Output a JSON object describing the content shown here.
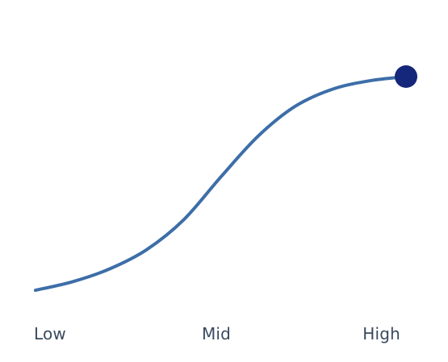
{
  "chart_data": {
    "type": "line",
    "categories": [
      "Low",
      "Mid",
      "High"
    ],
    "series": [
      {
        "x": [
          0,
          0.1,
          0.2,
          0.3,
          0.4,
          0.5,
          0.6,
          0.7,
          0.8,
          0.9,
          1.0
        ],
        "values": [
          0,
          0.04,
          0.1,
          0.19,
          0.33,
          0.53,
          0.72,
          0.86,
          0.94,
          0.98,
          1.0
        ],
        "color": "#3d6ea8"
      }
    ],
    "xlim": [
      0,
      1
    ],
    "ylim": [
      0,
      1
    ],
    "endpoint_marker": {
      "x": 1.0,
      "y": 1.0,
      "color": "#15277a"
    },
    "label_color": "#3a4a5e",
    "grid": false,
    "legend": "none"
  }
}
